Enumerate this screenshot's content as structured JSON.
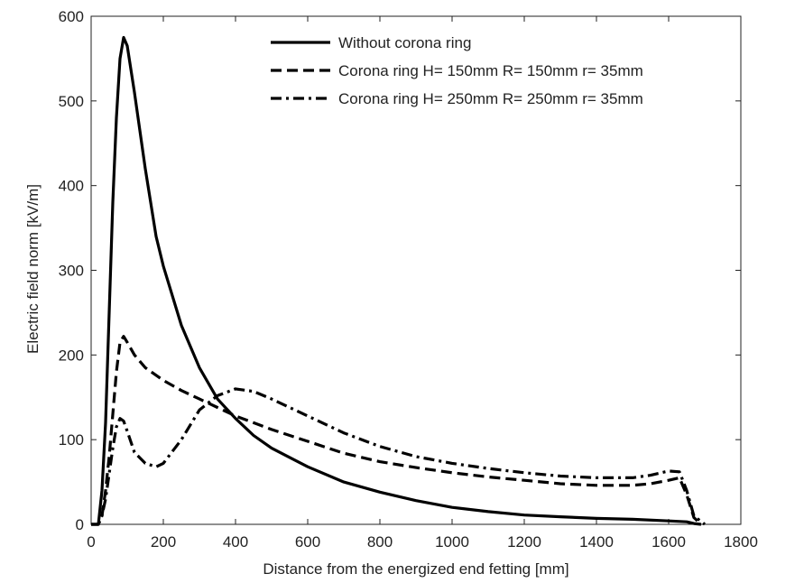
{
  "chart_data": {
    "type": "line",
    "title": "",
    "xlabel": "Distance from the energized end fetting [mm]",
    "ylabel": "Electric field norm [kV/m]",
    "xlim": [
      0,
      1800
    ],
    "ylim": [
      0,
      600
    ],
    "xticks": [
      "0",
      "200",
      "400",
      "600",
      "800",
      "1000",
      "1200",
      "1400",
      "1600",
      "1800"
    ],
    "yticks": [
      "0",
      "100",
      "200",
      "300",
      "400",
      "500",
      "600"
    ],
    "legend_position": "top-right",
    "colors": {
      "line": "#000000",
      "axis": "#222222"
    },
    "series": [
      {
        "name": "Without corona ring",
        "style": "solid",
        "x": [
          0,
          20,
          30,
          40,
          50,
          60,
          70,
          80,
          90,
          100,
          120,
          150,
          180,
          200,
          250,
          300,
          350,
          400,
          450,
          500,
          600,
          700,
          800,
          900,
          1000,
          1100,
          1200,
          1300,
          1400,
          1500,
          1600,
          1650,
          1670,
          1690
        ],
        "y": [
          0,
          0,
          40,
          120,
          250,
          380,
          480,
          550,
          575,
          565,
          510,
          420,
          340,
          305,
          235,
          185,
          148,
          125,
          105,
          90,
          68,
          50,
          38,
          28,
          20,
          15,
          11,
          9,
          7,
          6,
          4,
          3,
          1,
          0
        ]
      },
      {
        "name": "Corona ring H= 150mm R= 150mm r= 35mm",
        "style": "dashed",
        "x": [
          0,
          20,
          30,
          40,
          50,
          60,
          70,
          80,
          90,
          100,
          120,
          150,
          200,
          250,
          300,
          350,
          400,
          450,
          500,
          600,
          700,
          800,
          900,
          1000,
          1100,
          1200,
          1300,
          1400,
          1500,
          1550,
          1600,
          1630,
          1650,
          1670,
          1690
        ],
        "y": [
          0,
          0,
          10,
          40,
          80,
          130,
          180,
          215,
          222,
          215,
          200,
          185,
          170,
          158,
          148,
          138,
          128,
          120,
          112,
          98,
          84,
          74,
          67,
          61,
          56,
          52,
          48,
          46,
          46,
          48,
          52,
          55,
          35,
          8,
          0
        ]
      },
      {
        "name": "Corona ring H= 250mm R= 250mm r= 35mm",
        "style": "dashdot",
        "x": [
          0,
          20,
          30,
          40,
          50,
          60,
          70,
          80,
          90,
          100,
          120,
          150,
          180,
          200,
          250,
          300,
          350,
          400,
          450,
          500,
          600,
          700,
          800,
          900,
          1000,
          1100,
          1200,
          1300,
          1400,
          1500,
          1550,
          1600,
          1630,
          1650,
          1670,
          1700
        ],
        "y": [
          0,
          0,
          10,
          30,
          60,
          90,
          115,
          125,
          122,
          110,
          85,
          72,
          68,
          72,
          100,
          135,
          152,
          160,
          157,
          148,
          128,
          108,
          92,
          80,
          72,
          66,
          61,
          57,
          55,
          55,
          58,
          63,
          62,
          40,
          10,
          0
        ]
      }
    ]
  }
}
